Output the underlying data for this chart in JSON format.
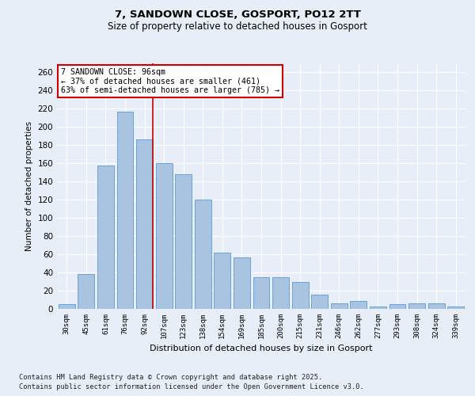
{
  "title1": "7, SANDOWN CLOSE, GOSPORT, PO12 2TT",
  "title2": "Size of property relative to detached houses in Gosport",
  "xlabel": "Distribution of detached houses by size in Gosport",
  "ylabel": "Number of detached properties",
  "categories": [
    "30sqm",
    "45sqm",
    "61sqm",
    "76sqm",
    "92sqm",
    "107sqm",
    "123sqm",
    "138sqm",
    "154sqm",
    "169sqm",
    "185sqm",
    "200sqm",
    "215sqm",
    "231sqm",
    "246sqm",
    "262sqm",
    "277sqm",
    "293sqm",
    "308sqm",
    "324sqm",
    "339sqm"
  ],
  "values": [
    5,
    38,
    158,
    217,
    186,
    160,
    148,
    120,
    62,
    57,
    35,
    35,
    30,
    16,
    6,
    9,
    3,
    5,
    6,
    6,
    3
  ],
  "bar_color": "#a8c4e0",
  "bar_edge_color": "#5b9bd5",
  "vline_x_index": 4,
  "vline_color": "#cc0000",
  "annotation_text": "7 SANDOWN CLOSE: 96sqm\n← 37% of detached houses are smaller (461)\n63% of semi-detached houses are larger (785) →",
  "annotation_box_color": "#ffffff",
  "annotation_box_edge": "#cc0000",
  "background_color": "#e8eef8",
  "grid_color": "#ffffff",
  "ylim": [
    0,
    270
  ],
  "yticks": [
    0,
    20,
    40,
    60,
    80,
    100,
    120,
    140,
    160,
    180,
    200,
    220,
    240,
    260
  ],
  "footer1": "Contains HM Land Registry data © Crown copyright and database right 2025.",
  "footer2": "Contains public sector information licensed under the Open Government Licence v3.0."
}
